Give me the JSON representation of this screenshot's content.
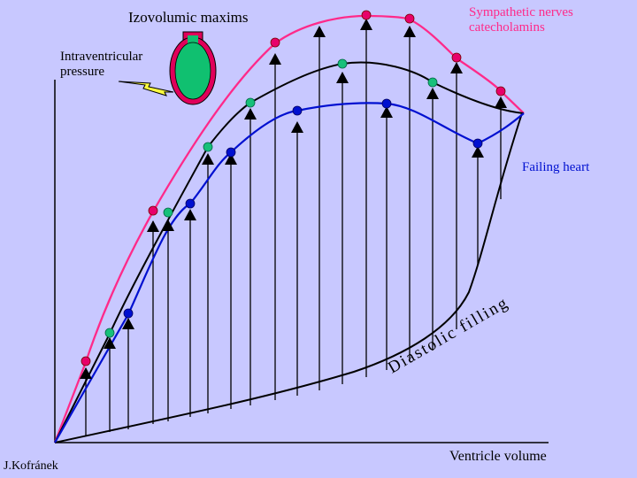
{
  "title": "Izovolumic maxims",
  "sympathetic_label": "Sympathetic nerves catecholamins",
  "pressure_label": "Intraventricular pressure",
  "failing_label": "Failing heart",
  "diastolic_label": "Diastolic filling",
  "volume_label": "Ventricle volume",
  "author": "J.Kofránek",
  "colors": {
    "background": "#c8c8ff",
    "sympathetic": "#ff2a8a",
    "normal": "#000000",
    "failing": "#0010d0",
    "normal_points": "#17c07a",
    "heart_icon": "#10c070"
  }
}
